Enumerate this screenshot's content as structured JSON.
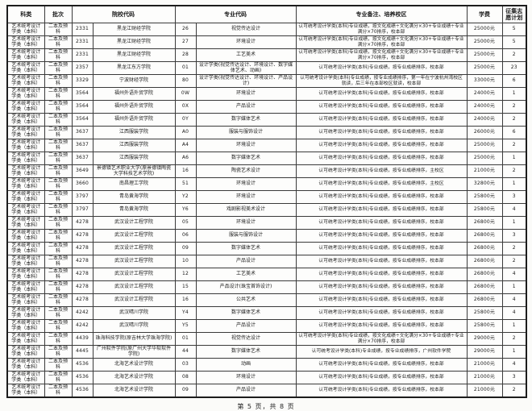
{
  "page": {
    "footer": "第 5 页，共 8 页"
  },
  "table": {
    "headers": [
      "科类",
      "批次",
      "院校代码",
      "专业代码",
      "专业备注、培养校区",
      "学费",
      "征集志愿计划"
    ],
    "shared": {
      "category": "艺术统考设计学类（本科）",
      "batch": "二本及预科"
    },
    "rows": [
      {
        "school_code": "2331",
        "school": "黑龙江财经学院",
        "major_code": "26",
        "major": "视觉传达设计",
        "remark": "认可统考设计学类(本科)专业成绩，按文化成绩÷文化满分×30+专业成绩÷专业满分×70排序，校本部",
        "fee": "25000元",
        "plan": "5"
      },
      {
        "school_code": "2331",
        "school": "黑龙江财经学院",
        "major_code": "27",
        "major": "环境设计",
        "remark": "认可统考设计学类(本科)专业成绩，按文化成绩÷文化满分×30+专业成绩÷专业满分×70排序，校本部",
        "fee": "25000元",
        "plan": "5"
      },
      {
        "school_code": "2331",
        "school": "黑龙江财经学院",
        "major_code": "28",
        "major": "工艺美术",
        "remark": "认可统考设计学类(本科)专业成绩，按文化成绩÷文化满分×30+专业成绩÷专业满分×70排序，校本部",
        "fee": "25000元",
        "plan": "2"
      },
      {
        "school_code": "2357",
        "school": "黑龙江东方学院",
        "major_code": "01",
        "major": "设计学类(视觉传达设计、环境设计、数字媒体艺术、动画)",
        "remark": "认可统考设计学类(本科)专业成绩，按专业成绩排序，校本部",
        "fee": "25000元",
        "plan": "23"
      },
      {
        "school_code": "3329",
        "school": "宁波财经学院",
        "major_code": "80",
        "major": "设计学类(视觉传达设计、环境设计、产品设计)",
        "remark": "认可统考设计学类(本科)专业成绩，按专业成绩排序，第一年在宁波杭州湾校区就读，后三年在本部校区就读，校本部",
        "fee": "33000元",
        "plan": "6"
      },
      {
        "school_code": "3564",
        "school": "福州外语外贸学院",
        "major_code": "0W",
        "major": "环境设计",
        "remark": "认可统考设计学类(本科)专业成绩，按专业成绩排序，校本部",
        "fee": "24000元",
        "plan": "1"
      },
      {
        "school_code": "3564",
        "school": "福州外语外贸学院",
        "major_code": "0X",
        "major": "产品设计",
        "remark": "认可统考设计学类(本科)专业成绩，按专业成绩排序，校本部",
        "fee": "24000元",
        "plan": "2"
      },
      {
        "school_code": "3564",
        "school": "福州外语外贸学院",
        "major_code": "0Y",
        "major": "数字媒体艺术",
        "remark": "认可统考设计学类(本科)专业成绩，按专业成绩排序，校本部",
        "fee": "24000元",
        "plan": "2"
      },
      {
        "school_code": "3637",
        "school": "江西服装学院",
        "major_code": "A0",
        "major": "服装与服饰设计",
        "remark": "认可统考设计学类(本科)专业成绩，按专业成绩排序，校本部",
        "fee": "26000元",
        "plan": "6"
      },
      {
        "school_code": "3637",
        "school": "江西服装学院",
        "major_code": "A4",
        "major": "环境设计",
        "remark": "认可统考设计学类(本科)专业成绩，按专业成绩排序，校本部",
        "fee": "25000元",
        "plan": "2"
      },
      {
        "school_code": "3637",
        "school": "江西服装学院",
        "major_code": "A6",
        "major": "数字媒体艺术",
        "remark": "认可统考设计学类(本科)专业成绩，按专业成绩排序，校本部",
        "fee": "25000元",
        "plan": "1"
      },
      {
        "school_code": "3649",
        "school": "景德镇艺术职业大学(原景德镇陶瓷大学科技艺术学院)",
        "major_code": "16",
        "major": "陶瓷艺术设计",
        "remark": "认可统考设计学类(本科)专业成绩，按专业成绩排序，主校区",
        "fee": "21000元",
        "plan": "2"
      },
      {
        "school_code": "3660",
        "school": "南昌理工学院",
        "major_code": "51",
        "major": "环境设计",
        "remark": "认可统考设计学类(本科)专业成绩，按专业成绩排序，主校区",
        "fee": "32800元",
        "plan": "1"
      },
      {
        "school_code": "3797",
        "school": "青岛黄海学院",
        "major_code": "Y2",
        "major": "环境设计",
        "remark": "认可统考设计学类(本科)专业成绩，按专业成绩排序，校本部",
        "fee": "25800元",
        "plan": "3"
      },
      {
        "school_code": "3797",
        "school": "青岛黄海学院",
        "major_code": "Y6",
        "major": "戏剧影视美术设计",
        "remark": "认可统考设计学类(本科)专业成绩，按专业成绩排序，校本部",
        "fee": "25800元",
        "plan": "4"
      },
      {
        "school_code": "4278",
        "school": "武汉设计工程学院",
        "major_code": "05",
        "major": "环境设计",
        "remark": "认可统考设计学类(本科)专业成绩，按专业成绩排序，校本部",
        "fee": "26800元",
        "plan": "1"
      },
      {
        "school_code": "4278",
        "school": "武汉设计工程学院",
        "major_code": "06",
        "major": "服装与服饰设计",
        "remark": "认可统考设计学类(本科)专业成绩，按专业成绩排序，校本部",
        "fee": "26800元",
        "plan": "3"
      },
      {
        "school_code": "4278",
        "school": "武汉设计工程学院",
        "major_code": "09",
        "major": "数字媒体艺术",
        "remark": "认可统考设计学类(本科)专业成绩，按专业成绩排序，校本部",
        "fee": "26800元",
        "plan": "2"
      },
      {
        "school_code": "4278",
        "school": "武汉设计工程学院",
        "major_code": "10",
        "major": "产品设计",
        "remark": "认可统考设计学类(本科)专业成绩，按专业成绩排序，校本部",
        "fee": "26800元",
        "plan": "2"
      },
      {
        "school_code": "4278",
        "school": "武汉设计工程学院",
        "major_code": "12",
        "major": "工艺美术",
        "remark": "认可统考设计学类(本科)专业成绩，按专业成绩排序，校本部",
        "fee": "26800元",
        "plan": "4"
      },
      {
        "school_code": "4278",
        "school": "武汉设计工程学院",
        "major_code": "15",
        "major": "产品设计(珠宝首饰设计)",
        "remark": "认可统考设计学类(本科)专业成绩，按专业成绩排序，校本部",
        "fee": "26800元",
        "plan": "1"
      },
      {
        "school_code": "4278",
        "school": "武汉设计工程学院",
        "major_code": "16",
        "major": "公共艺术",
        "remark": "认可统考设计学类(本科)专业成绩，按专业成绩排序，校本部",
        "fee": "26800元",
        "plan": "4"
      },
      {
        "school_code": "4242",
        "school": "武汉晴川学院",
        "major_code": "Y4",
        "major": "数字媒体艺术",
        "remark": "认可统考设计学类(本科)专业成绩，按专业成绩排序，校本部",
        "fee": "25800元",
        "plan": "4"
      },
      {
        "school_code": "4242",
        "school": "武汉晴川学院",
        "major_code": "Y5",
        "major": "产品设计",
        "remark": "认可统考设计学类(本科)专业成绩，按专业成绩排序，校本部",
        "fee": "25800元",
        "plan": "1"
      },
      {
        "school_code": "4439",
        "school": "珠海科技学院(原吉林大学珠海学院)",
        "major_code": "01",
        "major": "视觉传达设计",
        "remark": "认可统考设计学类(本科)专业成绩，按文化成绩÷文化满分×30+专业成绩÷专业满分×70排序，校本部",
        "fee": "29000元",
        "plan": "2"
      },
      {
        "school_code": "4445",
        "school": "广州软件学院(原广州大学华软软件学院)",
        "major_code": "44",
        "major": "数字媒体艺术",
        "remark": "认可统考设计学类(本科)专业成绩，按专业成绩排序，广州软件学院",
        "fee": "29000元",
        "plan": "1"
      },
      {
        "school_code": "4536",
        "school": "北海艺术设计学院",
        "major_code": "03",
        "major": "动画",
        "remark": "认可统考设计学类(本科)专业成绩，按专业成绩排序，校本部",
        "fee": "21000元",
        "plan": "4"
      },
      {
        "school_code": "4536",
        "school": "北海艺术设计学院",
        "major_code": "08",
        "major": "环境设计",
        "remark": "认可统考设计学类(本科)专业成绩，按专业成绩排序，校本部",
        "fee": "21000元",
        "plan": "3"
      },
      {
        "school_code": "4536",
        "school": "北海艺术设计学院",
        "major_code": "09",
        "major": "产品设计",
        "remark": "认可统考设计学类(本科)专业成绩，按专业成绩排序，校本部",
        "fee": "21000元",
        "plan": "2"
      }
    ]
  }
}
